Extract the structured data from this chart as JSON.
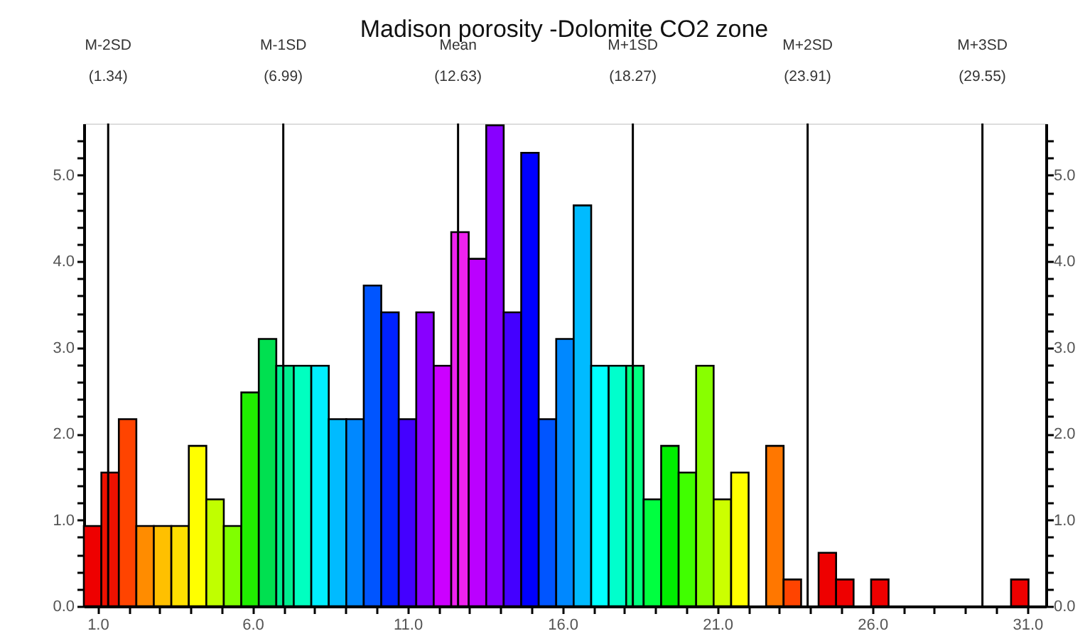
{
  "chart_data": {
    "type": "histogram",
    "title": "Madison porosity -Dolomite CO2 zone",
    "bins": [
      0.555,
      1.12,
      1.684,
      2.249,
      2.813,
      3.378,
      3.942,
      4.507,
      5.071,
      5.636,
      6.2,
      6.765,
      7.329,
      7.894,
      8.458,
      9.023,
      9.587,
      10.152,
      10.716,
      11.281,
      11.845,
      12.41,
      12.974,
      13.539,
      14.103,
      14.668,
      15.232,
      15.797,
      16.361,
      16.926,
      17.49,
      18.055,
      18.619,
      19.184,
      19.748,
      20.313,
      20.877,
      21.442,
      22.006,
      22.571,
      23.135,
      23.7,
      24.264,
      24.829,
      25.393,
      25.958,
      26.522,
      27.087,
      27.651,
      28.216,
      28.78,
      29.345,
      29.909,
      30.474,
      31.038
    ],
    "values": [
      0.93,
      1.55,
      2.17,
      0.93,
      0.93,
      0.93,
      1.86,
      1.24,
      0.93,
      2.48,
      3.1,
      2.79,
      2.79,
      2.79,
      2.17,
      2.17,
      3.72,
      3.41,
      2.17,
      3.41,
      2.79,
      4.34,
      4.03,
      5.58,
      3.41,
      5.26,
      2.17,
      3.1,
      4.65,
      2.79,
      2.79,
      2.79,
      1.24,
      1.86,
      1.55,
      2.79,
      1.24,
      1.55,
      0,
      1.86,
      0.31,
      0,
      0.62,
      0.31,
      0,
      0.31,
      0,
      0,
      0,
      0,
      0,
      0,
      0,
      0.31
    ],
    "colors": [
      "#ee0000",
      "#ee1100",
      "#ff4400",
      "#ff8c00",
      "#ffc000",
      "#ffe000",
      "#ffff00",
      "#c0ff00",
      "#80ff00",
      "#20ee00",
      "#00e050",
      "#00ee90",
      "#00ffc0",
      "#00eeff",
      "#00bbff",
      "#0088ff",
      "#0055ff",
      "#0022ff",
      "#4400ff",
      "#8800ff",
      "#cc00ff",
      "#ee22ee",
      "#bb00ff",
      "#8800ff",
      "#4400ff",
      "#0000ff",
      "#0055ff",
      "#0088ff",
      "#00bbff",
      "#00ffff",
      "#00ffcc",
      "#00ff80",
      "#00ff40",
      "#00ee00",
      "#40ff00",
      "#88ff00",
      "#ccff00",
      "#ffff00",
      null,
      "#ff7700",
      "#ff4400",
      null,
      "#ee0000",
      "#ee0000",
      null,
      "#ee0000",
      null,
      null,
      null,
      null,
      null,
      null,
      null,
      "#ee0000"
    ],
    "xlim": [
      0.555,
      31.6
    ],
    "xticks": [
      {
        "value": 1,
        "label": "1.0"
      },
      {
        "value": 2,
        "label": null
      },
      {
        "value": 3,
        "label": null
      },
      {
        "value": 4,
        "label": null
      },
      {
        "value": 5,
        "label": null
      },
      {
        "value": 6,
        "label": "6.0"
      },
      {
        "value": 7,
        "label": null
      },
      {
        "value": 8,
        "label": null
      },
      {
        "value": 9,
        "label": null
      },
      {
        "value": 10,
        "label": null
      },
      {
        "value": 11,
        "label": "11.0"
      },
      {
        "value": 12,
        "label": null
      },
      {
        "value": 13,
        "label": null
      },
      {
        "value": 14,
        "label": null
      },
      {
        "value": 15,
        "label": null
      },
      {
        "value": 16,
        "label": "16.0"
      },
      {
        "value": 17,
        "label": null
      },
      {
        "value": 18,
        "label": null
      },
      {
        "value": 19,
        "label": null
      },
      {
        "value": 20,
        "label": null
      },
      {
        "value": 21,
        "label": "21.0"
      },
      {
        "value": 22,
        "label": null
      },
      {
        "value": 23,
        "label": null
      },
      {
        "value": 24,
        "label": null
      },
      {
        "value": 25,
        "label": null
      },
      {
        "value": 26,
        "label": "26.0"
      },
      {
        "value": 27,
        "label": null
      },
      {
        "value": 28,
        "label": null
      },
      {
        "value": 29,
        "label": null
      },
      {
        "value": 30,
        "label": null
      },
      {
        "value": 31,
        "label": "31.0"
      }
    ],
    "ylim": [
      0,
      5.6
    ],
    "yticks": [
      {
        "value": 0,
        "label": "0.0"
      },
      {
        "value": 0.2,
        "label": null
      },
      {
        "value": 0.4,
        "label": null
      },
      {
        "value": 0.6,
        "label": null
      },
      {
        "value": 0.8,
        "label": null
      },
      {
        "value": 1,
        "label": "1.0"
      },
      {
        "value": 1.2,
        "label": null
      },
      {
        "value": 1.4,
        "label": null
      },
      {
        "value": 1.6,
        "label": null
      },
      {
        "value": 1.8,
        "label": null
      },
      {
        "value": 2,
        "label": "2.0"
      },
      {
        "value": 2.2,
        "label": null
      },
      {
        "value": 2.4,
        "label": null
      },
      {
        "value": 2.6,
        "label": null
      },
      {
        "value": 2.8,
        "label": null
      },
      {
        "value": 3,
        "label": "3.0"
      },
      {
        "value": 3.2,
        "label": null
      },
      {
        "value": 3.4,
        "label": null
      },
      {
        "value": 3.6,
        "label": null
      },
      {
        "value": 3.8,
        "label": null
      },
      {
        "value": 4,
        "label": "4.0"
      },
      {
        "value": 4.2,
        "label": null
      },
      {
        "value": 4.4,
        "label": null
      },
      {
        "value": 4.6,
        "label": null
      },
      {
        "value": 4.8,
        "label": null
      },
      {
        "value": 5,
        "label": "5.0"
      },
      {
        "value": 5.2,
        "label": null
      },
      {
        "value": 5.4,
        "label": null
      }
    ],
    "y2lim": [
      0,
      5.6
    ],
    "y2ticks": [
      {
        "value": 0,
        "label": "0.0"
      },
      {
        "value": 0.2,
        "label": null
      },
      {
        "value": 0.4,
        "label": null
      },
      {
        "value": 0.6,
        "label": null
      },
      {
        "value": 0.8,
        "label": null
      },
      {
        "value": 1,
        "label": "1.0"
      },
      {
        "value": 1.2,
        "label": null
      },
      {
        "value": 1.4,
        "label": null
      },
      {
        "value": 1.6,
        "label": null
      },
      {
        "value": 1.8,
        "label": null
      },
      {
        "value": 2,
        "label": "2.0"
      },
      {
        "value": 2.2,
        "label": null
      },
      {
        "value": 2.4,
        "label": null
      },
      {
        "value": 2.6,
        "label": null
      },
      {
        "value": 2.8,
        "label": null
      },
      {
        "value": 3,
        "label": "3.0"
      },
      {
        "value": 3.2,
        "label": null
      },
      {
        "value": 3.4,
        "label": null
      },
      {
        "value": 3.6,
        "label": null
      },
      {
        "value": 3.8,
        "label": null
      },
      {
        "value": 4,
        "label": "4.0"
      },
      {
        "value": 4.2,
        "label": null
      },
      {
        "value": 4.4,
        "label": null
      },
      {
        "value": 4.6,
        "label": null
      },
      {
        "value": 4.8,
        "label": null
      },
      {
        "value": 5,
        "label": "5.0"
      },
      {
        "value": 5.2,
        "label": null
      },
      {
        "value": 5.4,
        "label": null
      }
    ],
    "ref_lines": [
      {
        "axis": "x",
        "value": 1.34,
        "label": "M-2SD\n(1.34)",
        "color": "#000000"
      },
      {
        "axis": "x",
        "value": 6.99,
        "label": "M-1SD\n(6.99)",
        "color": "#000000"
      },
      {
        "axis": "x",
        "value": 12.63,
        "label": "Mean\n(12.63)",
        "color": "#000000"
      },
      {
        "axis": "x",
        "value": 18.27,
        "label": "M+1SD\n(18.27)",
        "color": "#000000"
      },
      {
        "axis": "x",
        "value": 23.91,
        "label": "M+2SD\n(23.91)",
        "color": "#000000"
      },
      {
        "axis": "x",
        "value": 29.55,
        "label": "M+3SD\n(29.55)",
        "color": "#000000"
      }
    ],
    "grid": false
  }
}
